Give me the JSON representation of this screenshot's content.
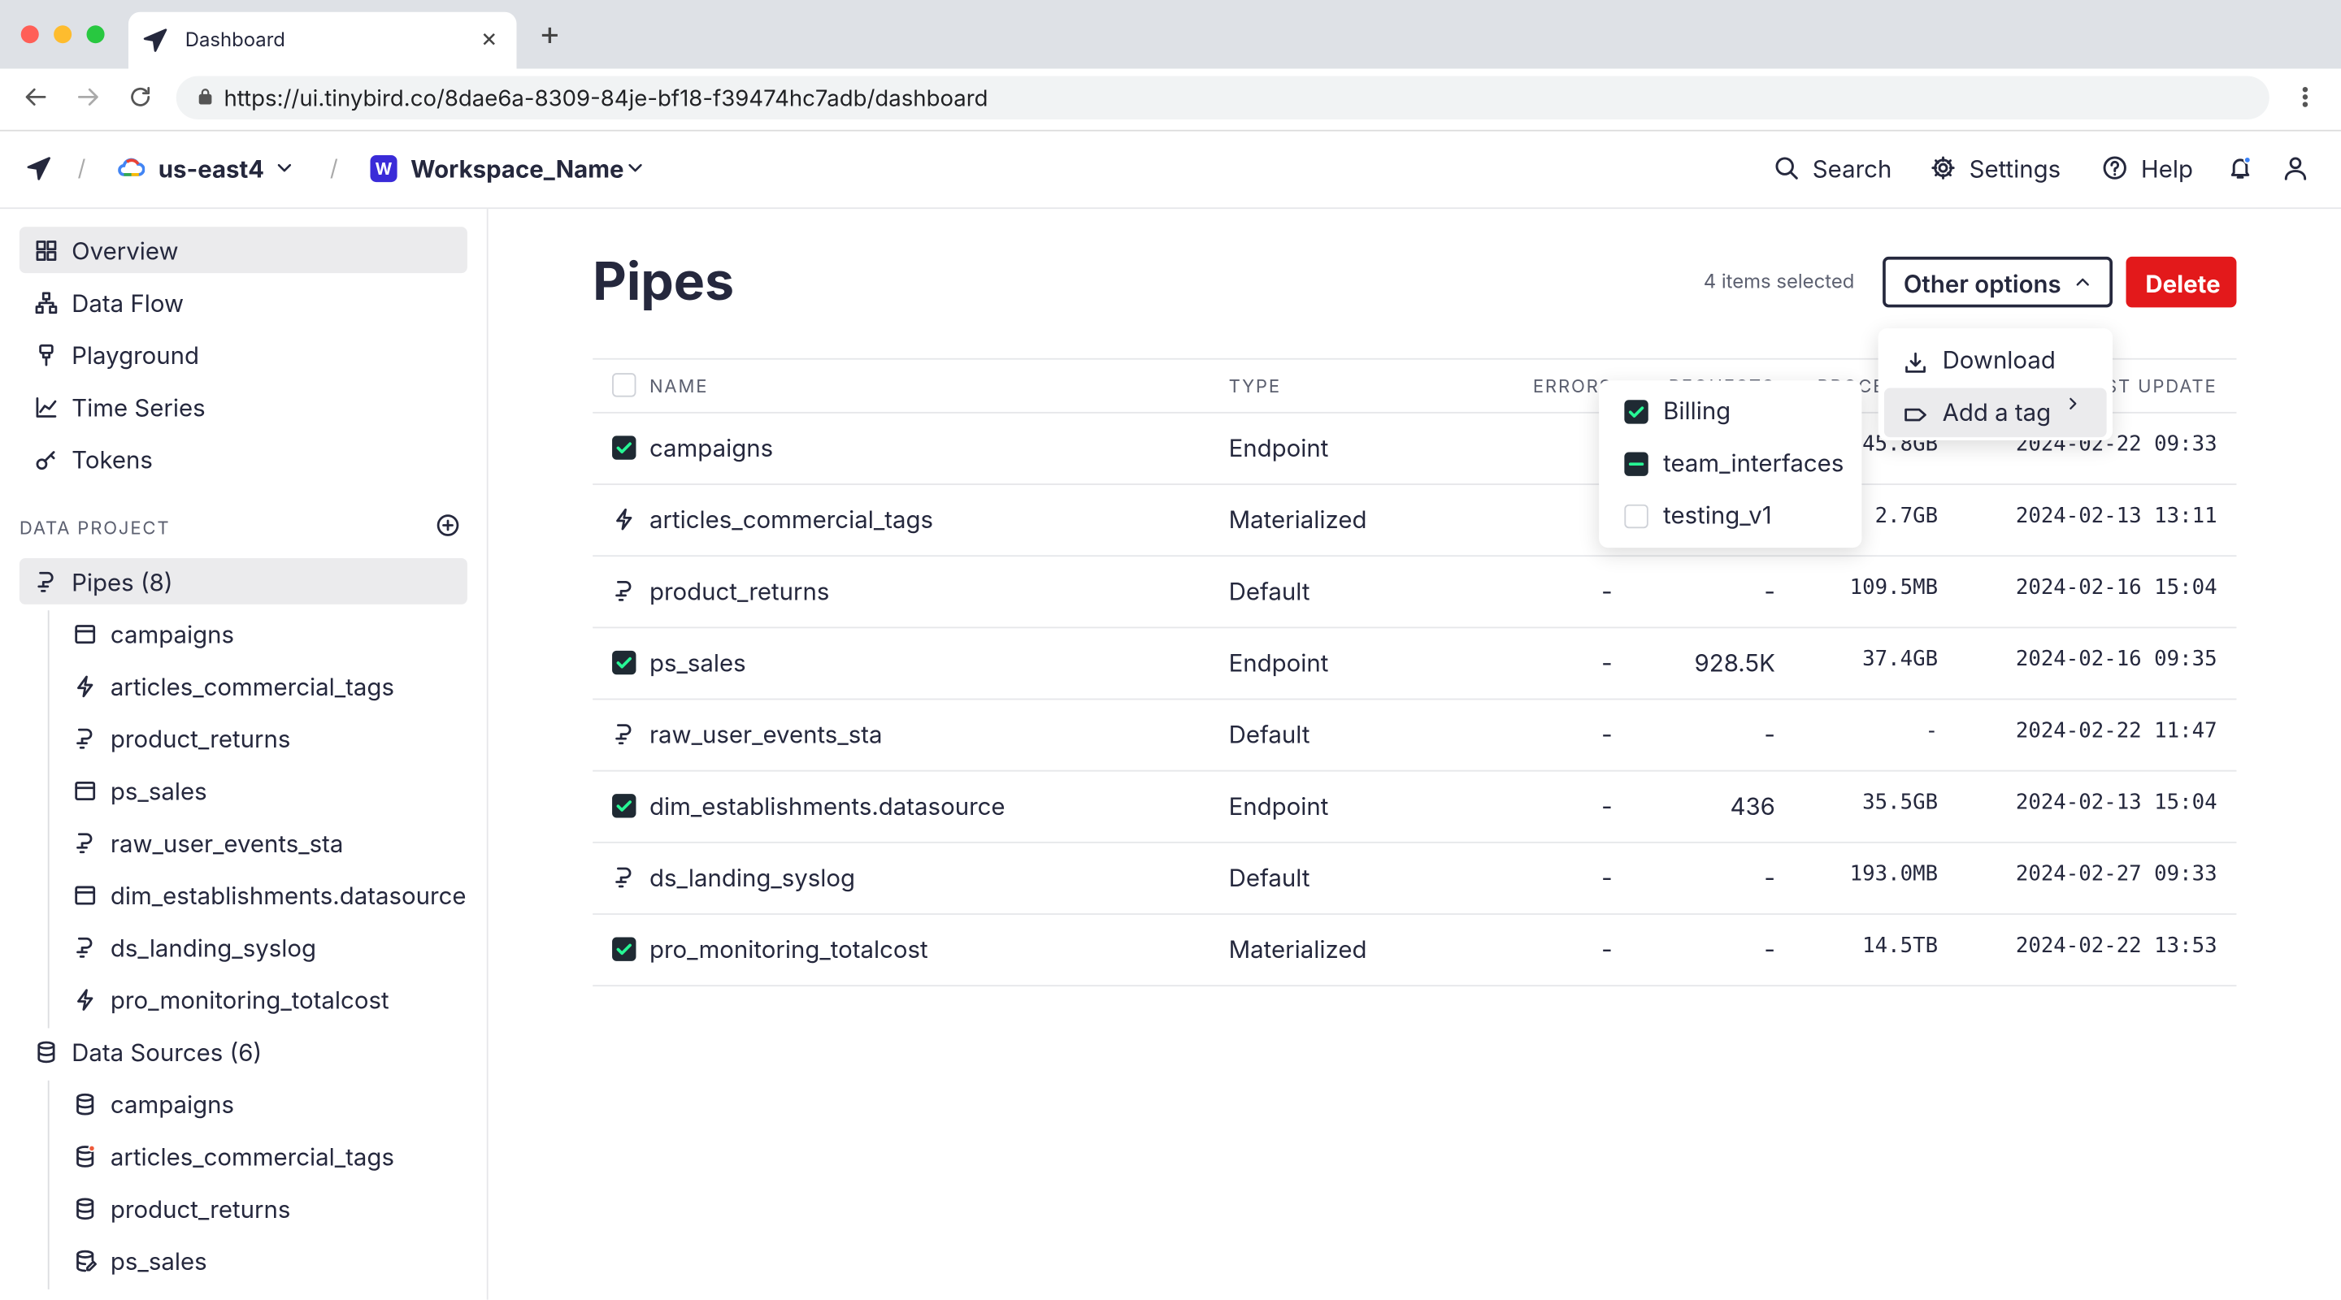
{
  "browser": {
    "tab_title": "Dashboard",
    "url": "https://ui.tinybird.co/8dae6a-8309-84je-bf18-f39474hc7adb/dashboard"
  },
  "header": {
    "region": "us-east4",
    "workspace_initial": "W",
    "workspace": "Workspace_Name",
    "actions": [
      {
        "label": "Search",
        "icon": "search"
      },
      {
        "label": "Settings",
        "icon": "gear"
      },
      {
        "label": "Help",
        "icon": "help"
      }
    ]
  },
  "sidebar": {
    "nav": [
      {
        "label": "Overview",
        "icon": "grid",
        "active": true
      },
      {
        "label": "Data Flow",
        "icon": "flow",
        "active": false
      },
      {
        "label": "Playground",
        "icon": "play",
        "active": false
      },
      {
        "label": "Time Series",
        "icon": "chart",
        "active": false
      },
      {
        "label": "Tokens",
        "icon": "key",
        "active": false
      }
    ],
    "section": "DATA PROJECT",
    "groups": [
      {
        "label": "Pipes (8)",
        "icon": "pipe",
        "active": true,
        "items": [
          {
            "label": "campaigns",
            "icon": "endpoint"
          },
          {
            "label": "articles_commercial_tags",
            "icon": "bolt"
          },
          {
            "label": "product_returns",
            "icon": "pipe"
          },
          {
            "label": "ps_sales",
            "icon": "endpoint"
          },
          {
            "label": "raw_user_events_sta",
            "icon": "pipe"
          },
          {
            "label": "dim_establishments.datasource",
            "icon": "endpoint"
          },
          {
            "label": "ds_landing_syslog",
            "icon": "pipe"
          },
          {
            "label": "pro_monitoring_totalcost",
            "icon": "bolt"
          }
        ]
      },
      {
        "label": "Data Sources (6)",
        "icon": "db",
        "active": false,
        "items": [
          {
            "label": "campaigns",
            "icon": "db"
          },
          {
            "label": "articles_commercial_tags",
            "icon": "dbdot"
          },
          {
            "label": "product_returns",
            "icon": "db"
          },
          {
            "label": "ps_sales",
            "icon": "dbedit"
          }
        ]
      }
    ]
  },
  "main": {
    "title": "Pipes",
    "selection": "4 items selected",
    "other_options": "Other options",
    "delete": "Delete",
    "menu": [
      {
        "label": "Download",
        "icon": "download"
      },
      {
        "label": "Add a tag",
        "icon": "tag"
      }
    ],
    "tags": [
      {
        "label": "Billing",
        "state": "checked"
      },
      {
        "label": "team_interfaces",
        "state": "mixed"
      },
      {
        "label": "testing_v1",
        "state": "none"
      }
    ],
    "table": {
      "columns": [
        "NAME",
        "TYPE",
        "ERRORS",
        "REQUESTS",
        "PROCESSED",
        "LAST UPDATE"
      ],
      "rows": [
        {
          "checked": true,
          "icon": "endpoint",
          "cells": [
            "campaigns",
            "Endpoint",
            "-",
            "-",
            "45.8GB",
            "2024-02-22 09:33"
          ]
        },
        {
          "checked": false,
          "icon": "bolt",
          "cells": [
            "articles_commercial_tags",
            "Materialized",
            "-",
            "-",
            "2.7GB",
            "2024-02-13 13:11"
          ]
        },
        {
          "checked": false,
          "icon": "pipe",
          "cells": [
            "product_returns",
            "Default",
            "-",
            "-",
            "109.5MB",
            "2024-02-16 15:04"
          ]
        },
        {
          "checked": true,
          "icon": "endpoint",
          "cells": [
            "ps_sales",
            "Endpoint",
            "-",
            "928.5K",
            "37.4GB",
            "2024-02-16 09:35"
          ]
        },
        {
          "checked": false,
          "icon": "pipe",
          "cells": [
            "raw_user_events_sta",
            "Default",
            "-",
            "-",
            "-",
            "2024-02-22 11:47"
          ]
        },
        {
          "checked": true,
          "icon": "endpoint",
          "cells": [
            "dim_establishments.datasource",
            "Endpoint",
            "-",
            "436",
            "35.5GB",
            "2024-02-13 15:04"
          ]
        },
        {
          "checked": false,
          "icon": "pipe",
          "cells": [
            "ds_landing_syslog",
            "Default",
            "-",
            "-",
            "193.0MB",
            "2024-02-27 09:33"
          ]
        },
        {
          "checked": true,
          "icon": "bolt",
          "cells": [
            "pro_monitoring_totalcost",
            "Materialized",
            "-",
            "-",
            "14.5TB",
            "2024-02-22 13:53"
          ]
        }
      ]
    }
  }
}
